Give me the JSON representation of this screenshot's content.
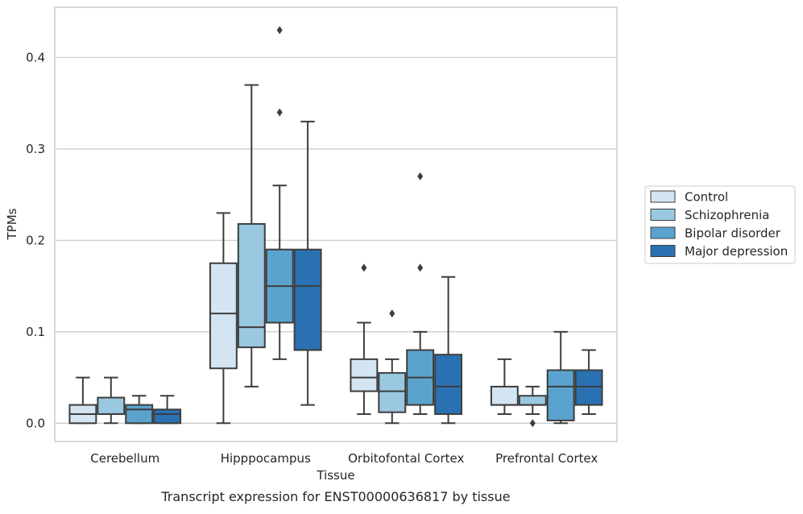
{
  "caption": "Transcript expression for ENST00000636817 by tissue",
  "chart_data": {
    "type": "boxplot",
    "title": "",
    "xlabel": "Tissue",
    "ylabel": "TPMs",
    "ylim": [
      -0.02,
      0.455
    ],
    "yticks": [
      0.0,
      0.1,
      0.2,
      0.3,
      0.4
    ],
    "ytick_labels": [
      "0.0",
      "0.1",
      "0.2",
      "0.3",
      "0.4"
    ],
    "grid": true,
    "legend_position": "right",
    "categories": [
      "Cerebellum",
      "Hipppocampus",
      "Orbitofontal Cortex",
      "Prefrontal Cortex"
    ],
    "series": [
      {
        "name": "Control",
        "color": "#d3e4f3",
        "boxes": [
          {
            "whislo": 0.0,
            "q1": 0.0,
            "med": 0.01,
            "q3": 0.02,
            "whishi": 0.05,
            "fliers": []
          },
          {
            "whislo": 0.0,
            "q1": 0.06,
            "med": 0.12,
            "q3": 0.175,
            "whishi": 0.23,
            "fliers": []
          },
          {
            "whislo": 0.01,
            "q1": 0.035,
            "med": 0.05,
            "q3": 0.07,
            "whishi": 0.11,
            "fliers": [
              0.17
            ]
          },
          {
            "whislo": 0.01,
            "q1": 0.02,
            "med": 0.02,
            "q3": 0.04,
            "whishi": 0.07,
            "fliers": []
          }
        ]
      },
      {
        "name": "Schizophrenia",
        "color": "#9ac8e0",
        "boxes": [
          {
            "whislo": 0.0,
            "q1": 0.01,
            "med": 0.01,
            "q3": 0.028,
            "whishi": 0.05,
            "fliers": []
          },
          {
            "whislo": 0.04,
            "q1": 0.083,
            "med": 0.105,
            "q3": 0.218,
            "whishi": 0.37,
            "fliers": []
          },
          {
            "whislo": 0.0,
            "q1": 0.012,
            "med": 0.035,
            "q3": 0.055,
            "whishi": 0.07,
            "fliers": [
              0.12
            ]
          },
          {
            "whislo": 0.01,
            "q1": 0.02,
            "med": 0.02,
            "q3": 0.03,
            "whishi": 0.04,
            "fliers": [
              0.0
            ]
          }
        ]
      },
      {
        "name": "Bipolar disorder",
        "color": "#5ba3cf",
        "boxes": [
          {
            "whislo": 0.0,
            "q1": 0.0,
            "med": 0.015,
            "q3": 0.02,
            "whishi": 0.03,
            "fliers": []
          },
          {
            "whislo": 0.07,
            "q1": 0.11,
            "med": 0.15,
            "q3": 0.19,
            "whishi": 0.26,
            "fliers": [
              0.34,
              0.43
            ]
          },
          {
            "whislo": 0.01,
            "q1": 0.02,
            "med": 0.05,
            "q3": 0.08,
            "whishi": 0.1,
            "fliers": [
              0.17,
              0.27
            ]
          },
          {
            "whislo": 0.0,
            "q1": 0.003,
            "med": 0.04,
            "q3": 0.058,
            "whishi": 0.1,
            "fliers": []
          }
        ]
      },
      {
        "name": "Major depression",
        "color": "#2a71b2",
        "boxes": [
          {
            "whislo": 0.0,
            "q1": 0.0,
            "med": 0.01,
            "q3": 0.015,
            "whishi": 0.03,
            "fliers": []
          },
          {
            "whislo": 0.02,
            "q1": 0.08,
            "med": 0.15,
            "q3": 0.19,
            "whishi": 0.33,
            "fliers": []
          },
          {
            "whislo": 0.0,
            "q1": 0.01,
            "med": 0.04,
            "q3": 0.075,
            "whishi": 0.16,
            "fliers": []
          },
          {
            "whislo": 0.01,
            "q1": 0.02,
            "med": 0.04,
            "q3": 0.058,
            "whishi": 0.08,
            "fliers": []
          }
        ]
      }
    ]
  }
}
